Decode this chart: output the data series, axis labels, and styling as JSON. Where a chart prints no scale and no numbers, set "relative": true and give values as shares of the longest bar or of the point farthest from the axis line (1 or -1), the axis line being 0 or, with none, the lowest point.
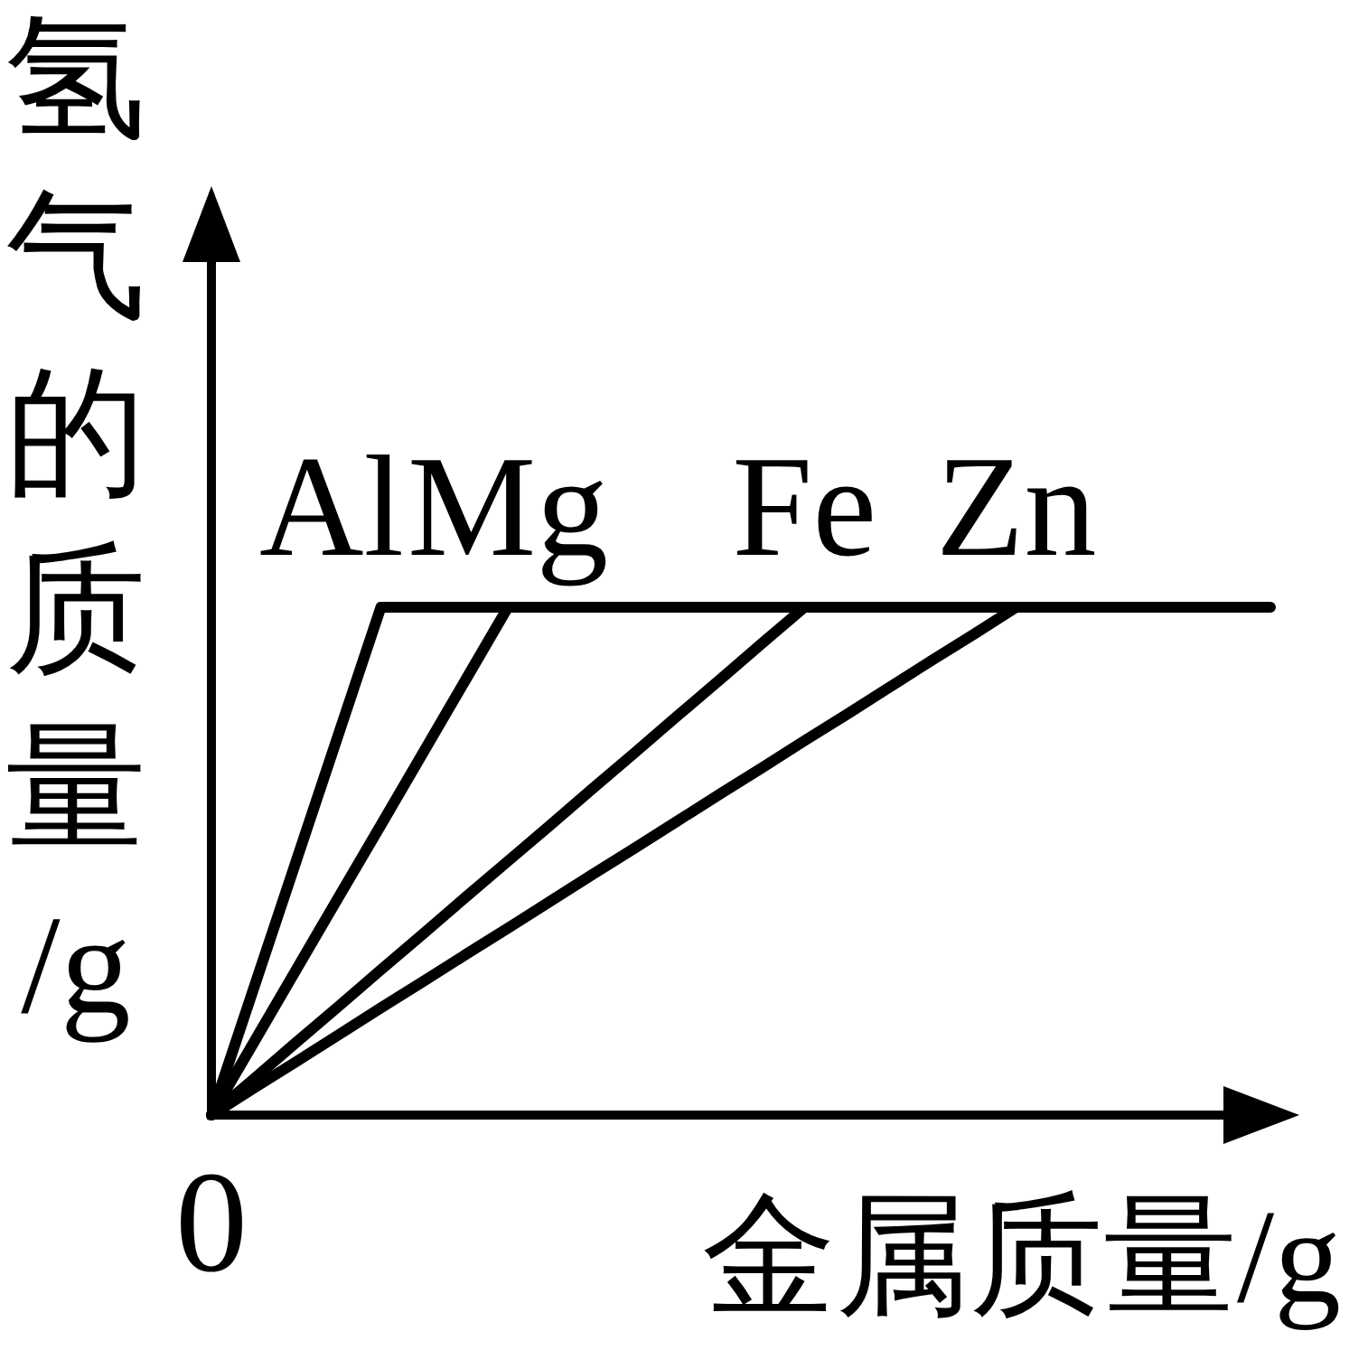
{
  "chart_data": {
    "type": "line",
    "relative": true,
    "xlabel": "金属质量/g",
    "ylabel": "氢气的质量/g",
    "annotations": [
      "0"
    ],
    "categories": [
      null,
      null,
      null,
      null,
      null,
      null,
      null,
      null,
      null,
      null,
      null,
      null,
      null,
      null,
      null,
      null,
      null,
      null,
      null,
      null,
      null,
      null,
      null,
      null,
      null,
      null
    ],
    "series": [
      {
        "name": "Al",
        "color": "#000000",
        "values": [
          0,
          0.25,
          0.5,
          0.75,
          1,
          1,
          1,
          1,
          1,
          1,
          1,
          1,
          1,
          1,
          1,
          1,
          1,
          1,
          1,
          1,
          1,
          1,
          1,
          1,
          1,
          1
        ]
      },
      {
        "name": "Mg",
        "color": "#000000",
        "values": [
          0,
          0.143,
          0.286,
          0.429,
          0.571,
          0.714,
          0.857,
          1,
          null,
          null,
          null,
          null,
          null,
          null,
          null,
          null,
          null,
          null,
          null,
          null,
          null,
          null,
          null,
          null,
          null,
          null
        ]
      },
      {
        "name": "Fe",
        "color": "#000000",
        "values": [
          0,
          0.071,
          0.143,
          0.214,
          0.286,
          0.357,
          0.429,
          0.5,
          0.571,
          0.643,
          0.714,
          0.786,
          0.857,
          0.929,
          1,
          null,
          null,
          null,
          null,
          null,
          null,
          null,
          null,
          null,
          null,
          null
        ]
      },
      {
        "name": "Zn",
        "color": "#000000",
        "values": [
          0,
          0.053,
          0.105,
          0.158,
          0.211,
          0.263,
          0.316,
          0.368,
          0.421,
          0.474,
          0.526,
          0.579,
          0.632,
          0.684,
          0.737,
          0.789,
          0.842,
          0.895,
          0.947,
          1,
          null,
          null,
          null,
          null,
          null,
          null
        ]
      }
    ]
  }
}
